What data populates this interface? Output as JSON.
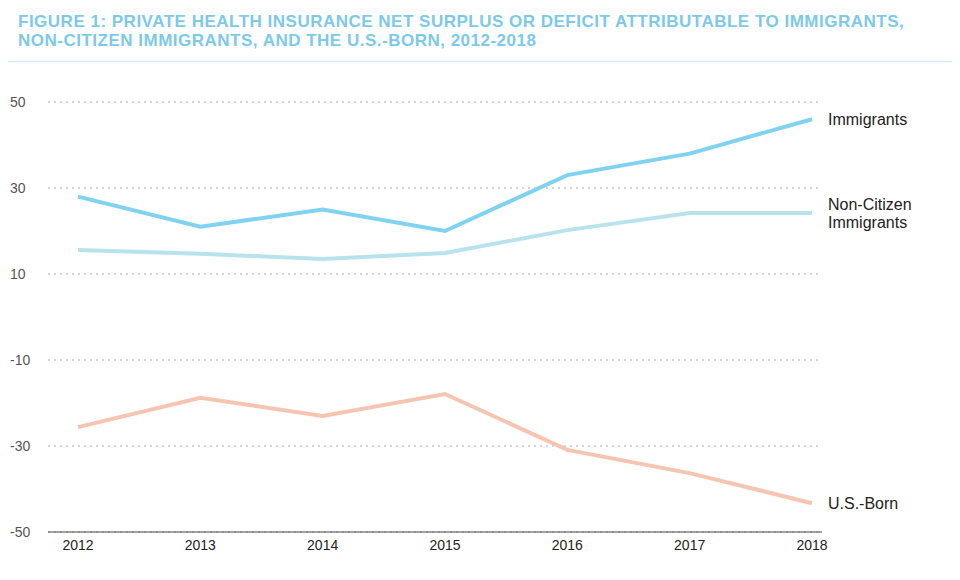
{
  "chart_data": {
    "type": "line",
    "title": "FIGURE 1: PRIVATE HEALTH INSURANCE NET SURPLUS OR DEFICIT ATTRIBUTABLE TO IMMIGRANTS, NON-CITIZEN IMMIGRANTS, AND THE U.S.-BORN, 2012-2018",
    "categories": [
      "2012",
      "2013",
      "2014",
      "2015",
      "2016",
      "2017",
      "2018"
    ],
    "series": [
      {
        "name": "Immigrants",
        "color": "#7fd3f0",
        "values": [
          28,
          21,
          25,
          20,
          33,
          38,
          46
        ]
      },
      {
        "name": "Non-Citizen Immigrants",
        "color": "#b9e3ec",
        "values": [
          15.6,
          14.7,
          13.5,
          14.9,
          20.2,
          24.2,
          24.2
        ]
      },
      {
        "name": "U.S.-Born",
        "color": "#f6c5b2",
        "values": [
          -25.6,
          -18.8,
          -23,
          -17.9,
          -30.9,
          -36.3,
          -43.3
        ]
      }
    ],
    "ylim": [
      -50,
      50
    ],
    "yticks": [
      -50,
      -30,
      -10,
      10,
      30,
      50
    ],
    "grid": true
  }
}
